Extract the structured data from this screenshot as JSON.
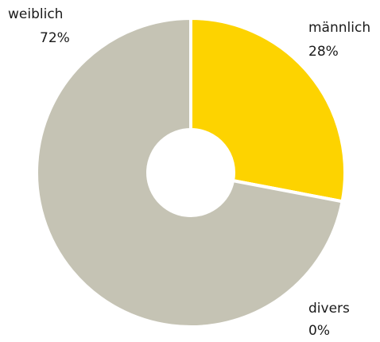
{
  "chart_data": {
    "type": "donut",
    "categories": [
      "männlich",
      "divers",
      "weiblich"
    ],
    "values": [
      28,
      0,
      72
    ],
    "value_labels": [
      "28%",
      "0%",
      "72%"
    ],
    "colors": [
      "#fdd300",
      "#e6e0c8",
      "#c5c3b4"
    ]
  }
}
